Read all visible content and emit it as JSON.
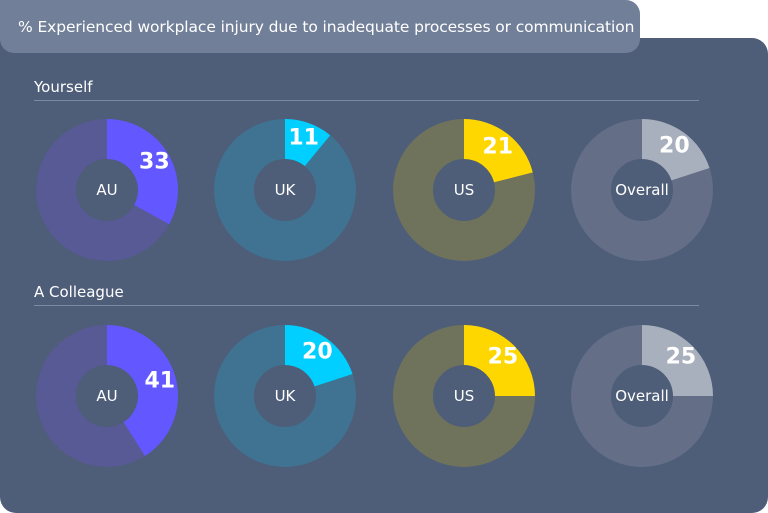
{
  "title": "% Experienced workplace injury due to inadequate processes or communication",
  "sections": [
    {
      "label": "Yourself",
      "donuts": [
        {
          "region": "AU",
          "value": 33,
          "value_text": "33",
          "color": "#6358ff",
          "track": "#575a94"
        },
        {
          "region": "UK",
          "value": 11,
          "value_text": "11",
          "color": "#00cfff",
          "track": "#3f7391"
        },
        {
          "region": "US",
          "value": 21,
          "value_text": "21",
          "color": "#ffd700",
          "track": "#6f735c"
        },
        {
          "region": "Overall",
          "value": 20,
          "value_text": "20",
          "color": "#a8afbd",
          "track": "#646e87"
        }
      ]
    },
    {
      "label": "A Colleague",
      "donuts": [
        {
          "region": "AU",
          "value": 41,
          "value_text": "41",
          "color": "#6358ff",
          "track": "#575a94"
        },
        {
          "region": "UK",
          "value": 20,
          "value_text": "20",
          "color": "#00cfff",
          "track": "#3f7391"
        },
        {
          "region": "US",
          "value": 25,
          "value_text": "25",
          "color": "#ffd700",
          "track": "#6f735c"
        },
        {
          "region": "Overall",
          "value": 25,
          "value_text": "25",
          "color": "#a8afbd",
          "track": "#646e87"
        }
      ]
    }
  ],
  "colors": {
    "panel_bg": "#4e5d78",
    "title_bg": "#717f98",
    "text": "#ffffff"
  },
  "chart_data": [
    {
      "type": "pie",
      "title": "% Experienced workplace injury due to inadequate processes or communication — Yourself",
      "categories": [
        "AU",
        "UK",
        "US",
        "Overall"
      ],
      "values": [
        33,
        11,
        21,
        20
      ],
      "unit": "%"
    },
    {
      "type": "pie",
      "title": "% Experienced workplace injury due to inadequate processes or communication — A Colleague",
      "categories": [
        "AU",
        "UK",
        "US",
        "Overall"
      ],
      "values": [
        41,
        20,
        25,
        25
      ],
      "unit": "%"
    }
  ]
}
